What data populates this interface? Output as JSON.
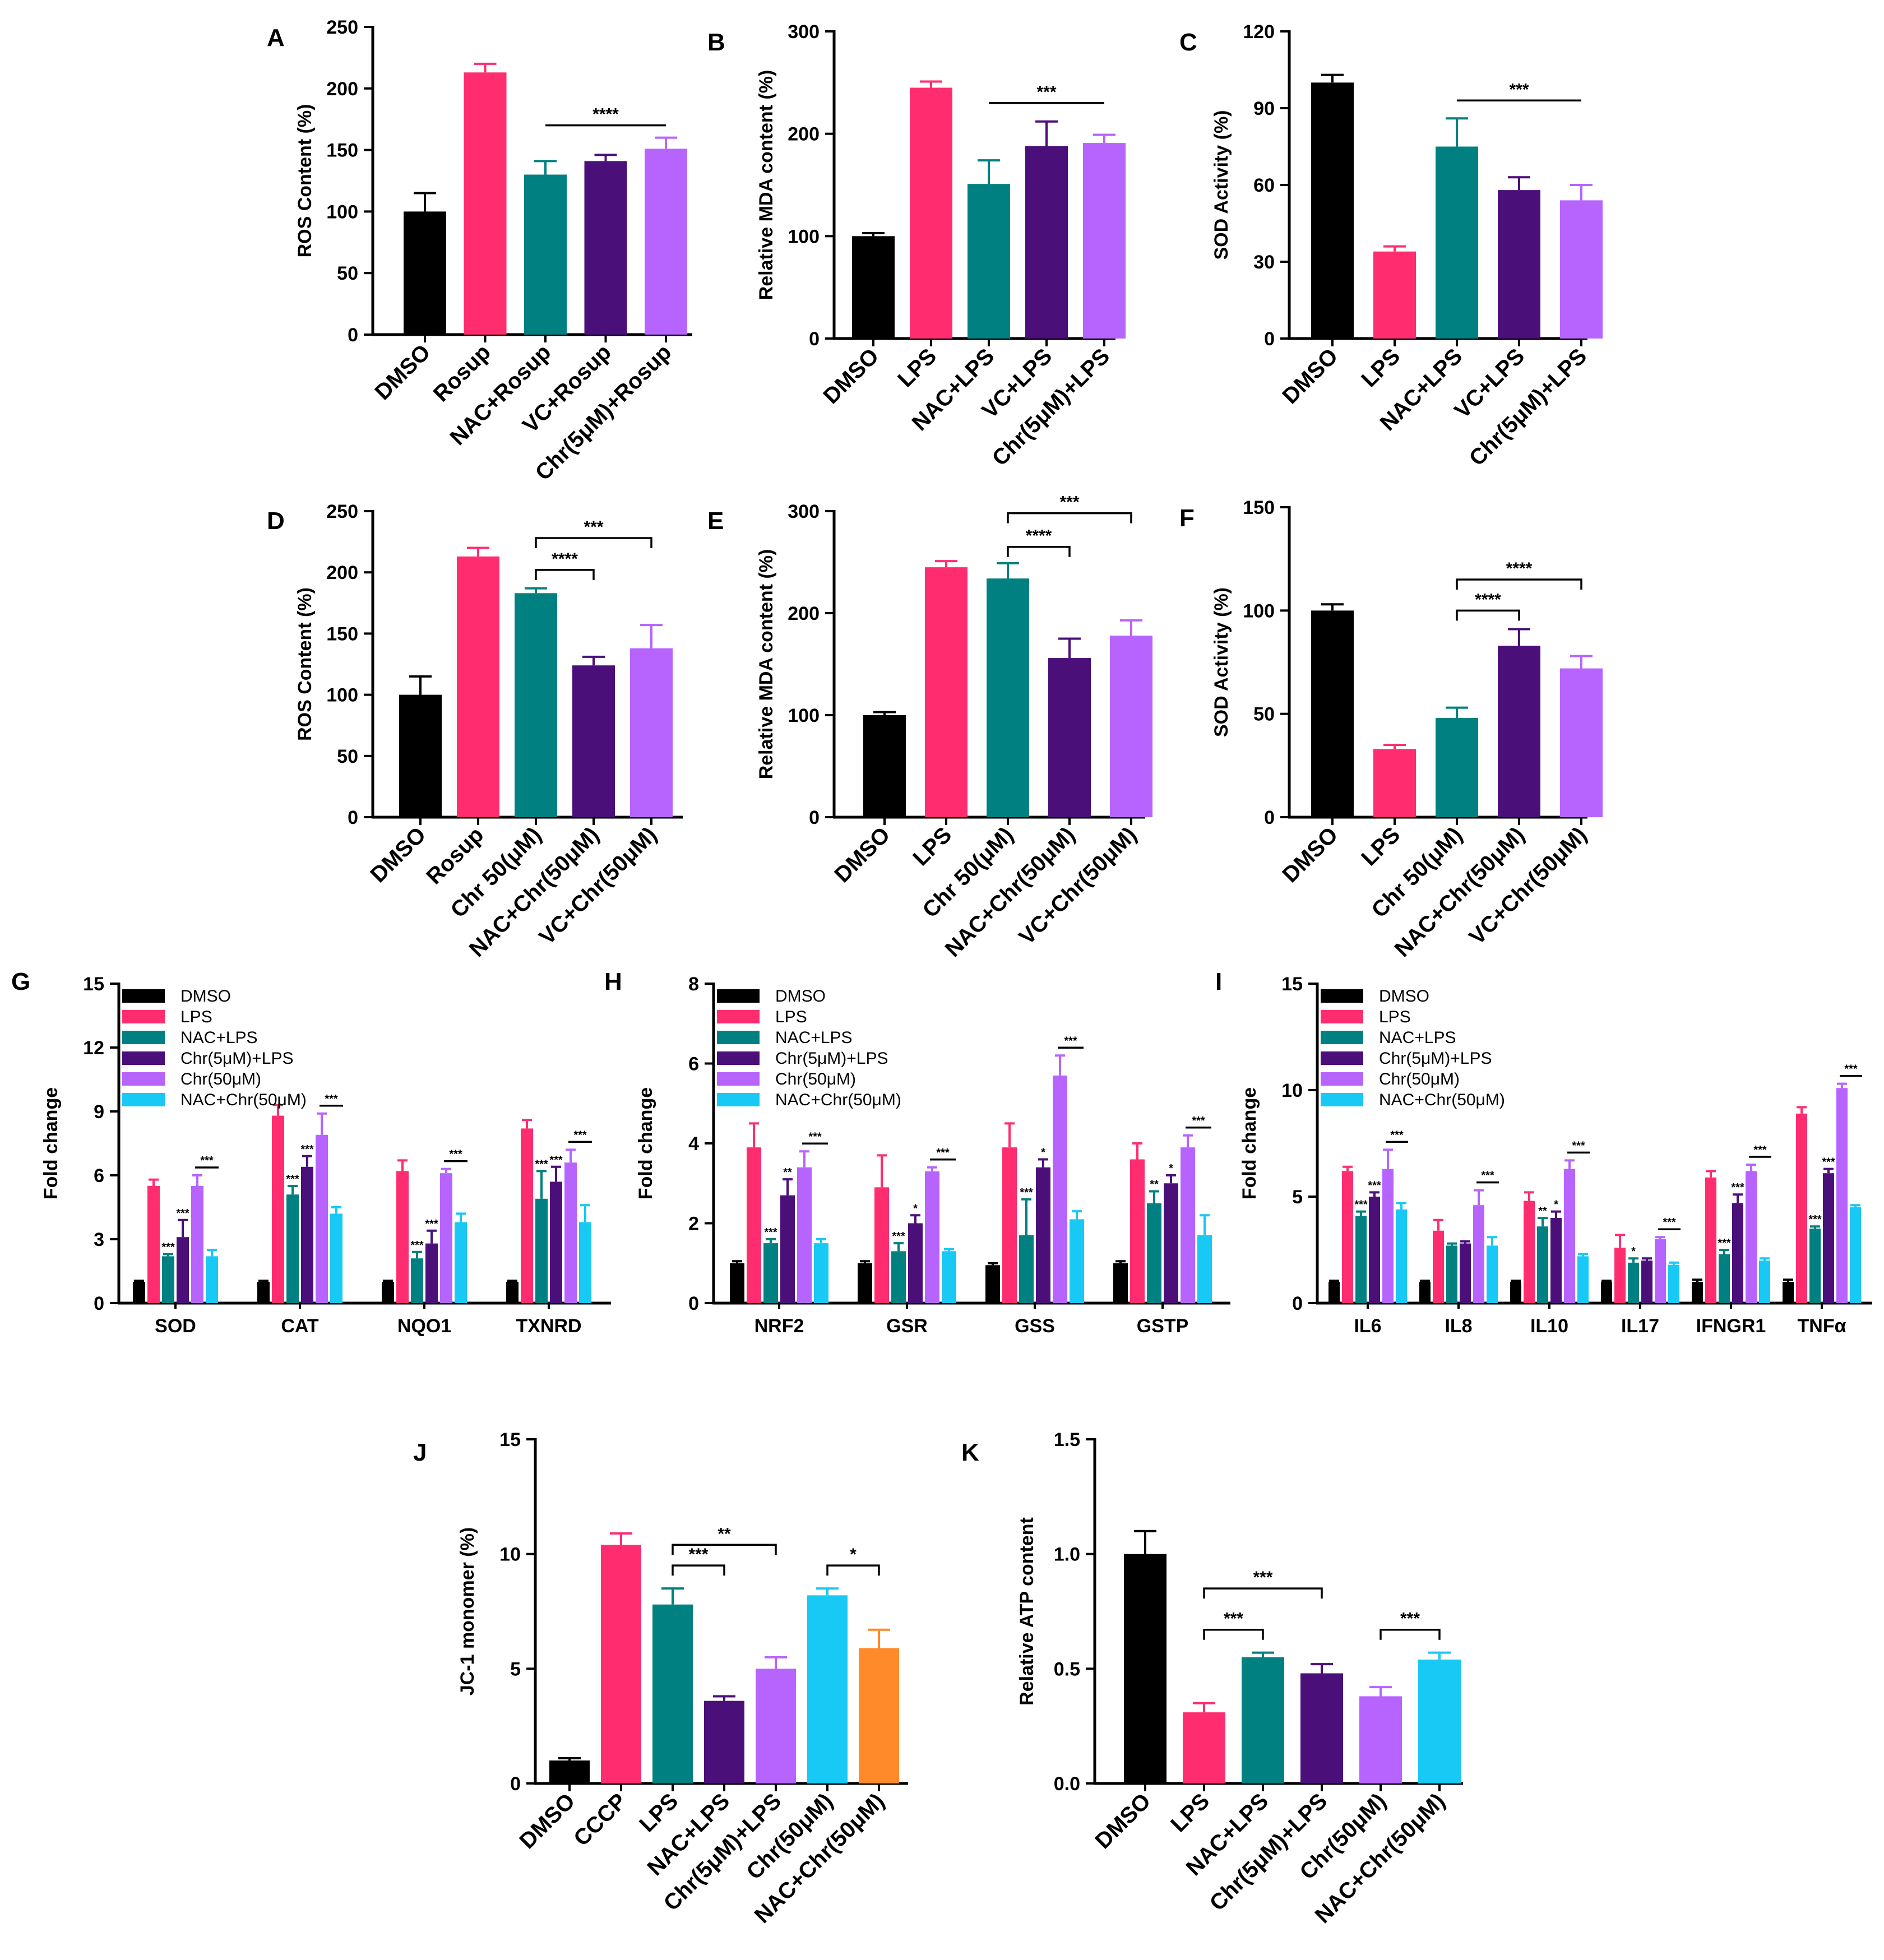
{
  "chart_data": [
    {
      "panel": "A",
      "type": "bar",
      "ylabel": "ROS Content (%)",
      "ylim": [
        0,
        250
      ],
      "yticks": [
        "0",
        "50",
        "100",
        "150",
        "200",
        "250"
      ],
      "categories": [
        "DMSO",
        "Rosup",
        "NAC+Rosup",
        "VC+Rosup",
        "Chr(5μM)+Rosup"
      ],
      "values": [
        100,
        213,
        130,
        141,
        151
      ],
      "errors": [
        15,
        7,
        11,
        5,
        9
      ],
      "colors": [
        "#000000",
        "#ff2d6f",
        "#008080",
        "#4b0f7a",
        "#b764ff"
      ],
      "annotations": [
        {
          "from": 2,
          "to": 4,
          "label": "****"
        }
      ]
    },
    {
      "panel": "B",
      "type": "bar",
      "ylabel": "Relative MDA content (%)",
      "ylim": [
        0,
        300
      ],
      "yticks": [
        "0",
        "100",
        "200",
        "300"
      ],
      "categories": [
        "DMSO",
        "LPS",
        "NAC+LPS",
        "VC+LPS",
        "Chr(5μM)+LPS"
      ],
      "values": [
        100,
        245,
        151,
        188,
        191
      ],
      "errors": [
        3,
        6,
        23,
        24,
        8
      ],
      "colors": [
        "#000000",
        "#ff2d6f",
        "#008080",
        "#4b0f7a",
        "#b764ff"
      ],
      "annotations": [
        {
          "from": 2,
          "to": 4,
          "label": "***"
        }
      ]
    },
    {
      "panel": "C",
      "type": "bar",
      "ylabel": "SOD Activity (%)",
      "ylim": [
        0,
        120
      ],
      "yticks": [
        "0",
        "30",
        "60",
        "90",
        "120"
      ],
      "categories": [
        "DMSO",
        "LPS",
        "NAC+LPS",
        "VC+LPS",
        "Chr(5μM)+LPS"
      ],
      "values": [
        100,
        34,
        75,
        58,
        54
      ],
      "errors": [
        3,
        2,
        11,
        5,
        6
      ],
      "colors": [
        "#000000",
        "#ff2d6f",
        "#008080",
        "#4b0f7a",
        "#b764ff"
      ],
      "annotations": [
        {
          "from": 2,
          "to": 4,
          "label": "***"
        }
      ]
    },
    {
      "panel": "D",
      "type": "bar",
      "ylabel": "ROS Content (%)",
      "ylim": [
        0,
        250
      ],
      "yticks": [
        "0",
        "50",
        "100",
        "150",
        "200",
        "250"
      ],
      "categories": [
        "DMSO",
        "Rosup",
        "Chr 50(μM)",
        "NAC+Chr(50μM)",
        "VC+Chr(50μM)"
      ],
      "values": [
        100,
        213,
        183,
        124,
        138
      ],
      "errors": [
        15,
        7,
        4,
        7,
        19
      ],
      "colors": [
        "#000000",
        "#ff2d6f",
        "#008080",
        "#4b0f7a",
        "#b764ff"
      ],
      "annotations": [
        {
          "from": 2,
          "to": 3,
          "label": "****"
        },
        {
          "from": 2,
          "to": 4,
          "label": "***"
        }
      ]
    },
    {
      "panel": "E",
      "type": "bar",
      "ylabel": "Relative MDA content (%)",
      "ylim": [
        0,
        300
      ],
      "yticks": [
        "0",
        "100",
        "200",
        "300"
      ],
      "categories": [
        "DMSO",
        "LPS",
        "Chr 50(μM)",
        "NAC+Chr(50μM)",
        "VC+Chr(50μM)"
      ],
      "values": [
        100,
        245,
        234,
        156,
        178
      ],
      "errors": [
        3,
        6,
        15,
        19,
        15
      ],
      "colors": [
        "#000000",
        "#ff2d6f",
        "#008080",
        "#4b0f7a",
        "#b764ff"
      ],
      "annotations": [
        {
          "from": 2,
          "to": 3,
          "label": "****"
        },
        {
          "from": 2,
          "to": 4,
          "label": "***"
        }
      ]
    },
    {
      "panel": "F",
      "type": "bar",
      "ylabel": "SOD Activity (%)",
      "ylim": [
        0,
        150
      ],
      "yticks": [
        "0",
        "50",
        "100",
        "150"
      ],
      "categories": [
        "DMSO",
        "LPS",
        "Chr 50(μM)",
        "NAC+Chr(50μM)",
        "VC+Chr(50μM)"
      ],
      "values": [
        100,
        33,
        48,
        83,
        72
      ],
      "errors": [
        3,
        2,
        5,
        8,
        6
      ],
      "colors": [
        "#000000",
        "#ff2d6f",
        "#008080",
        "#4b0f7a",
        "#b764ff"
      ],
      "annotations": [
        {
          "from": 2,
          "to": 3,
          "label": "****"
        },
        {
          "from": 2,
          "to": 4,
          "label": "****"
        }
      ]
    },
    {
      "panel": "G",
      "type": "grouped-bar",
      "ylabel": "Fold change",
      "ylim": [
        0,
        15
      ],
      "yticks": [
        "0",
        "3",
        "6",
        "9",
        "12",
        "15"
      ],
      "categories": [
        "SOD",
        "CAT",
        "NQO1",
        "TXNRD"
      ],
      "series": [
        {
          "name": "DMSO",
          "color": "#000000",
          "values": [
            1,
            1,
            1,
            1
          ],
          "errors": [
            0.05,
            0.05,
            0.05,
            0.05
          ]
        },
        {
          "name": "LPS",
          "color": "#ff2d6f",
          "values": [
            5.5,
            8.8,
            6.2,
            8.2
          ],
          "errors": [
            0.3,
            0.5,
            0.5,
            0.4
          ]
        },
        {
          "name": "NAC+LPS",
          "color": "#008080",
          "values": [
            2.2,
            5.1,
            2.1,
            4.9
          ],
          "errors": [
            0.1,
            0.4,
            0.3,
            1.3
          ]
        },
        {
          "name": "Chr(5μM)+LPS",
          "color": "#4b0f7a",
          "values": [
            3.1,
            6.4,
            2.8,
            5.7
          ],
          "errors": [
            0.8,
            0.5,
            0.6,
            0.7
          ]
        },
        {
          "name": "Chr(50μM)",
          "color": "#b764ff",
          "values": [
            5.5,
            7.9,
            6.1,
            6.6
          ],
          "errors": [
            0.5,
            1.0,
            0.2,
            0.6
          ]
        },
        {
          "name": "NAC+Chr(50μM)",
          "color": "#18c8f5",
          "values": [
            2.2,
            4.2,
            3.8,
            3.8
          ],
          "errors": [
            0.3,
            0.3,
            0.4,
            0.8
          ]
        }
      ],
      "group_marks": [
        [
          "***",
          "***",
          "***"
        ],
        [
          "***",
          "***",
          "***"
        ],
        [
          "***",
          "***",
          "***"
        ],
        [
          "***",
          "***",
          "***"
        ]
      ]
    },
    {
      "panel": "H",
      "type": "grouped-bar",
      "ylabel": "Fold change",
      "ylim": [
        0,
        8
      ],
      "yticks": [
        "0",
        "2",
        "4",
        "6",
        "8"
      ],
      "categories": [
        "NRF2",
        "GSR",
        "GSS",
        "GSTP"
      ],
      "series": [
        {
          "name": "DMSO",
          "color": "#000000",
          "values": [
            1,
            1,
            0.95,
            1
          ],
          "errors": [
            0.05,
            0.05,
            0.05,
            0.05
          ]
        },
        {
          "name": "LPS",
          "color": "#ff2d6f",
          "values": [
            3.9,
            2.9,
            3.9,
            3.6
          ],
          "errors": [
            0.6,
            0.8,
            0.6,
            0.4
          ]
        },
        {
          "name": "NAC+LPS",
          "color": "#008080",
          "values": [
            1.5,
            1.3,
            1.7,
            2.5
          ],
          "errors": [
            0.1,
            0.2,
            0.9,
            0.3
          ]
        },
        {
          "name": "Chr(5μM)+LPS",
          "color": "#4b0f7a",
          "values": [
            2.7,
            2.0,
            3.4,
            3.0
          ],
          "errors": [
            0.4,
            0.2,
            0.2,
            0.2
          ]
        },
        {
          "name": "Chr(50μM)",
          "color": "#b764ff",
          "values": [
            3.4,
            3.3,
            5.7,
            3.9
          ],
          "errors": [
            0.4,
            0.1,
            0.5,
            0.3
          ]
        },
        {
          "name": "NAC+Chr(50μM)",
          "color": "#18c8f5",
          "values": [
            1.5,
            1.3,
            2.1,
            1.7
          ],
          "errors": [
            0.1,
            0.05,
            0.2,
            0.5
          ]
        }
      ],
      "group_marks": [
        [
          "***",
          "**",
          "***"
        ],
        [
          "***",
          "*",
          "***"
        ],
        [
          "***",
          "*",
          "***"
        ],
        [
          "**",
          "*",
          "***"
        ]
      ]
    },
    {
      "panel": "I",
      "type": "grouped-bar",
      "ylabel": "Fold change",
      "ylim": [
        0,
        15
      ],
      "yticks": [
        "0",
        "5",
        "10",
        "15"
      ],
      "categories": [
        "IL6",
        "IL8",
        "IL10",
        "IL17",
        "IFNGR1",
        "TNFα"
      ],
      "series": [
        {
          "name": "DMSO",
          "color": "#000000",
          "values": [
            1,
            1,
            1,
            1,
            1,
            1
          ],
          "errors": [
            0.05,
            0.05,
            0.05,
            0.05,
            0.1,
            0.1
          ]
        },
        {
          "name": "LPS",
          "color": "#ff2d6f",
          "values": [
            6.2,
            3.4,
            4.8,
            2.6,
            5.9,
            8.9
          ],
          "errors": [
            0.2,
            0.5,
            0.4,
            0.6,
            0.3,
            0.3
          ]
        },
        {
          "name": "NAC+LPS",
          "color": "#008080",
          "values": [
            4.1,
            2.7,
            3.6,
            1.9,
            2.3,
            3.5
          ],
          "errors": [
            0.2,
            0.1,
            0.4,
            0.2,
            0.2,
            0.1
          ]
        },
        {
          "name": "Chr(5μM)+LPS",
          "color": "#4b0f7a",
          "values": [
            5.0,
            2.8,
            4.0,
            2.0,
            4.7,
            6.1
          ],
          "errors": [
            0.2,
            0.1,
            0.3,
            0.1,
            0.4,
            0.2
          ]
        },
        {
          "name": "Chr(50μM)",
          "color": "#b764ff",
          "values": [
            6.3,
            4.6,
            6.3,
            3.0,
            6.2,
            10.1
          ],
          "errors": [
            0.9,
            0.7,
            0.4,
            0.1,
            0.3,
            0.2
          ]
        },
        {
          "name": "NAC+Chr(50μM)",
          "color": "#18c8f5",
          "values": [
            4.4,
            2.7,
            2.2,
            1.8,
            2.0,
            4.5
          ],
          "errors": [
            0.3,
            0.4,
            0.1,
            0.1,
            0.1,
            0.1
          ]
        }
      ],
      "group_marks": [
        [
          "***",
          "***",
          "***"
        ],
        [
          "",
          "",
          "***"
        ],
        [
          "**",
          "*",
          "***"
        ],
        [
          "*",
          "",
          "***"
        ],
        [
          "***",
          "***",
          "***"
        ],
        [
          "***",
          "***",
          "***"
        ]
      ]
    },
    {
      "panel": "J",
      "type": "bar",
      "ylabel": "JC-1 monomer (%)",
      "ylim": [
        0,
        15
      ],
      "yticks": [
        "0",
        "5",
        "10",
        "15"
      ],
      "categories": [
        "DMSO",
        "CCCP",
        "LPS",
        "NAC+LPS",
        "Chr(5μM)+LPS",
        "Chr(50μM)",
        "NAC+Chr(50μM)"
      ],
      "values": [
        1.0,
        10.4,
        7.8,
        3.6,
        5.0,
        8.2,
        5.9
      ],
      "errors": [
        0.1,
        0.5,
        0.7,
        0.2,
        0.5,
        0.3,
        0.8
      ],
      "colors": [
        "#000000",
        "#ff2d6f",
        "#008080",
        "#4b0f7a",
        "#b764ff",
        "#18c8f5",
        "#ff8a2a"
      ],
      "annotations": [
        {
          "from": 2,
          "to": 3,
          "label": "***"
        },
        {
          "from": 2,
          "to": 4,
          "label": "**"
        },
        {
          "from": 5,
          "to": 6,
          "label": "*"
        }
      ]
    },
    {
      "panel": "K",
      "type": "bar",
      "ylabel": "Relative ATP  content",
      "ylim": [
        0,
        1.5
      ],
      "yticks": [
        "0.0",
        "0.5",
        "1.0",
        "1.5"
      ],
      "categories": [
        "DMSO",
        "LPS",
        "NAC+LPS",
        "Chr(5μM)+LPS",
        "Chr(50μM)",
        "NAC+Chr(50μM)"
      ],
      "values": [
        1.0,
        0.31,
        0.55,
        0.48,
        0.38,
        0.54
      ],
      "errors": [
        0.1,
        0.04,
        0.02,
        0.04,
        0.04,
        0.03
      ],
      "colors": [
        "#000000",
        "#ff2d6f",
        "#008080",
        "#4b0f7a",
        "#b764ff",
        "#18c8f5"
      ],
      "annotations": [
        {
          "from": 1,
          "to": 2,
          "label": "***"
        },
        {
          "from": 1,
          "to": 3,
          "label": "***"
        },
        {
          "from": 4,
          "to": 5,
          "label": "***"
        }
      ]
    }
  ]
}
